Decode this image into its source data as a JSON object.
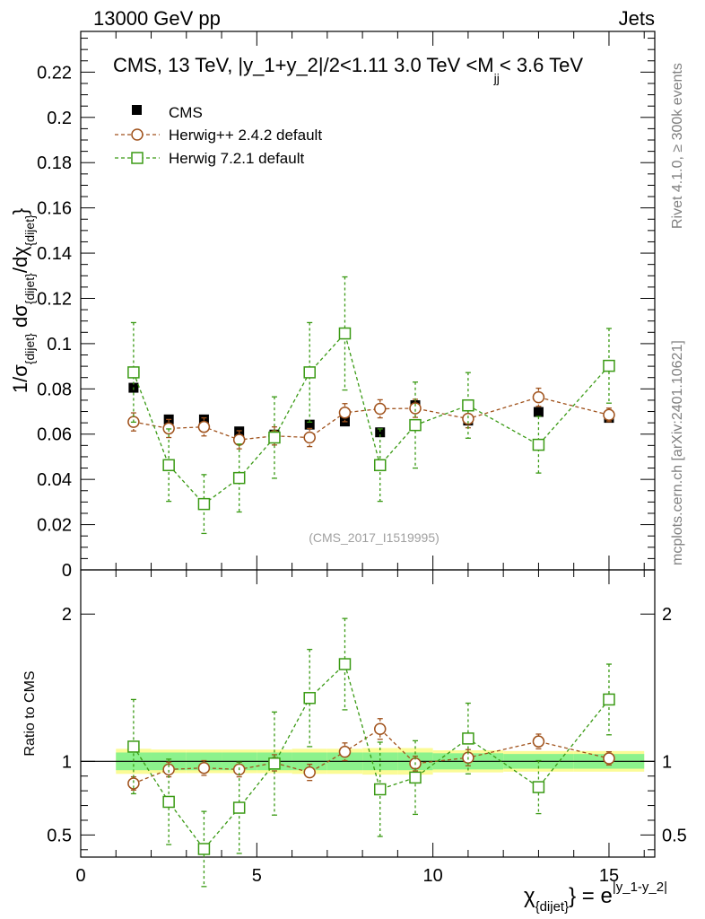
{
  "header": {
    "left": "13000 GeV pp",
    "right": "Jets"
  },
  "side_labels": {
    "rivet": "Rivet 4.1.0, ≥ 300k events",
    "mcplots": "mcplots.cern.ch [arXiv:2401.10621]"
  },
  "chart_data": {
    "type": "scatter",
    "title": "CMS, 13 TeV, |y_1+y_2|/2<1.11 3.0 TeV <M",
    "title_sub": "jj",
    "title_tail": "< 3.6 TeV",
    "watermark": "(CMS_2017_I1519995)",
    "ylabel": {
      "p1": "1/σ",
      "s1": "{dijet}",
      "p2": " dσ",
      "s2": "{dijet}",
      "p3": "/dχ",
      "s3": "{dijet}",
      "p4": "}"
    },
    "ratio_ylabel": "Ratio to CMS",
    "xlabel": {
      "chi": "χ",
      "sub": "{dijet}",
      "mid": "} = e",
      "sup": "|y_1-y_2|"
    },
    "xlim": [
      0,
      16.3
    ],
    "ylim": [
      0,
      0.238
    ],
    "ratio_ylim": [
      0.35,
      2.3
    ],
    "xticks": [
      0,
      5,
      10,
      15
    ],
    "yticks": [
      0,
      0.02,
      0.04,
      0.06,
      0.08,
      0.1,
      0.12,
      0.14,
      0.16,
      0.18,
      0.2,
      0.22
    ],
    "ytick_labels": [
      "0",
      "0.02",
      "0.04",
      "0.06",
      "0.08",
      "0.1",
      "0.12",
      "0.14",
      "0.16",
      "0.18",
      "0.2",
      "0.22"
    ],
    "ratio_yticks": [
      0.5,
      1,
      2
    ],
    "ratio_ytick_labels": [
      "0.5",
      "1",
      "2"
    ],
    "legend": {
      "position": "top-left",
      "entries": [
        "CMS",
        "Herwig++ 2.4.2 default",
        "Herwig 7.2.1 default"
      ]
    },
    "bins": [
      [
        1,
        2
      ],
      [
        2,
        3
      ],
      [
        3,
        4
      ],
      [
        4,
        5
      ],
      [
        5,
        6
      ],
      [
        6,
        7
      ],
      [
        7,
        8
      ],
      [
        8,
        9
      ],
      [
        9,
        10
      ],
      [
        10,
        12
      ],
      [
        12,
        14
      ],
      [
        14,
        16
      ]
    ],
    "x": [
      1.5,
      2.5,
      3.5,
      4.5,
      5.5,
      6.5,
      7.5,
      8.5,
      9.5,
      11,
      13,
      15
    ],
    "series": [
      {
        "name": "CMS",
        "color": "#000000",
        "marker": "filled-square",
        "values": [
          0.0805,
          0.0665,
          0.0665,
          0.0612,
          0.0598,
          0.0642,
          0.0656,
          0.0608,
          0.0728,
          0.066,
          0.0698,
          0.0672
        ]
      },
      {
        "name": "Herwig++ 2.4.2 default",
        "color": "#a0521c",
        "marker": "open-circle",
        "values": [
          0.0654,
          0.0625,
          0.0632,
          0.0575,
          0.0592,
          0.0585,
          0.0695,
          0.0712,
          0.0714,
          0.0668,
          0.0763,
          0.0685
        ],
        "errors": [
          0.004,
          0.004,
          0.004,
          0.004,
          0.004,
          0.004,
          0.004,
          0.004,
          0.004,
          0.004,
          0.004,
          0.003
        ],
        "ratio": [
          0.85,
          0.945,
          0.955,
          0.945,
          0.99,
          0.925,
          1.065,
          1.22,
          0.985,
          1.025,
          1.135,
          1.02
        ],
        "ratio_errors": [
          0.045,
          0.05,
          0.05,
          0.05,
          0.055,
          0.055,
          0.06,
          0.07,
          0.05,
          0.055,
          0.05,
          0.045
        ]
      },
      {
        "name": "Herwig 7.2.1 default",
        "color": "#3a9a14",
        "marker": "open-square",
        "values": [
          0.0873,
          0.0463,
          0.0291,
          0.0406,
          0.0585,
          0.0873,
          0.1045,
          0.0463,
          0.064,
          0.0727,
          0.0553,
          0.0902
        ],
        "errors": [
          0.022,
          0.016,
          0.013,
          0.015,
          0.018,
          0.022,
          0.025,
          0.016,
          0.019,
          0.0145,
          0.0125,
          0.0165
        ],
        "ratio": [
          1.1,
          0.725,
          0.405,
          0.685,
          0.985,
          1.43,
          1.66,
          0.81,
          0.89,
          1.155,
          0.825,
          1.42
        ],
        "ratio_errors": [
          0.32,
          0.29,
          0.255,
          0.31,
          0.35,
          0.33,
          0.31,
          0.32,
          0.25,
          0.24,
          0.18,
          0.24
        ]
      }
    ],
    "ratio_band": {
      "stat": [
        0.06,
        0.06,
        0.06,
        0.06,
        0.06,
        0.06,
        0.06,
        0.06,
        0.06,
        0.055,
        0.05,
        0.05
      ],
      "total": [
        0.085,
        0.08,
        0.08,
        0.08,
        0.08,
        0.085,
        0.085,
        0.09,
        0.09,
        0.075,
        0.07,
        0.07
      ],
      "stat_color": "#8cf28c",
      "total_color": "#fbfb96"
    }
  }
}
